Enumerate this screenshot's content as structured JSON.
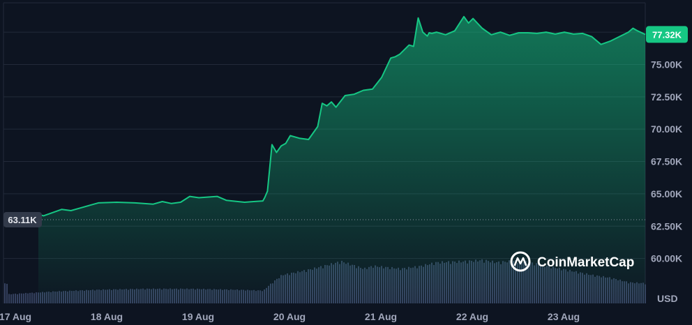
{
  "chart_data": {
    "type": "area",
    "x_ticks": [
      "17 Aug",
      "18 Aug",
      "19 Aug",
      "20 Aug",
      "21 Aug",
      "22 Aug",
      "23 Aug"
    ],
    "y_ticks": [
      "60.00K",
      "62.50K",
      "65.00K",
      "67.50K",
      "70.00K",
      "72.50K",
      "75.00K"
    ],
    "y_unit": "USD",
    "ylim": [
      57500,
      79500
    ],
    "x_range_days": [
      17.0,
      24.0
    ],
    "current_label": "77.32K",
    "current_value": 77320,
    "start_label": "63.11K",
    "start_value": 63110,
    "watermark": "CoinMarketCap",
    "line_color": "#16c784",
    "volume_color": "#35415f",
    "series": [
      {
        "x": [
          17.0,
          17.1,
          17.2,
          17.3,
          17.4,
          17.5,
          17.6,
          17.7,
          17.8,
          17.9,
          18.0,
          18.2,
          18.4,
          18.6,
          18.7,
          18.8,
          18.9,
          19.0,
          19.1,
          19.3,
          19.4,
          19.6,
          19.7,
          19.8,
          19.82,
          19.85,
          19.9,
          19.95,
          20.0,
          20.05,
          20.1,
          20.2,
          20.3,
          20.4,
          20.45,
          20.5,
          20.55,
          20.6,
          20.7,
          20.8,
          20.9,
          21.0,
          21.1,
          21.2,
          21.25,
          21.3,
          21.4,
          21.45,
          21.5,
          21.55,
          21.6,
          21.62,
          21.65,
          21.7,
          21.8,
          21.9,
          22.0,
          22.05,
          22.1,
          22.2,
          22.25,
          22.3,
          22.4,
          22.5,
          22.6,
          22.7,
          22.8,
          22.9,
          23.0,
          23.1,
          23.2,
          23.3,
          23.4,
          23.5,
          23.6,
          23.7,
          23.8,
          23.85,
          23.9,
          24.0
        ],
        "values": [
          63110,
          63200,
          63350,
          63500,
          63300,
          63550,
          63800,
          63700,
          63900,
          64100,
          64300,
          64350,
          64300,
          64200,
          64400,
          64250,
          64350,
          64800,
          64700,
          64800,
          64500,
          64350,
          64400,
          64450,
          64700,
          65200,
          68800,
          68200,
          68700,
          68900,
          69500,
          69300,
          69200,
          70200,
          72000,
          71800,
          72100,
          71700,
          72600,
          72700,
          73000,
          73100,
          74000,
          75500,
          75600,
          75800,
          76500,
          76400,
          78600,
          77500,
          77200,
          77450,
          77400,
          77500,
          77300,
          77600,
          78700,
          78200,
          78550,
          77800,
          77550,
          77300,
          77500,
          77250,
          77450,
          77450,
          77400,
          77500,
          77350,
          77500,
          77350,
          77400,
          77150,
          76550,
          76800,
          77150,
          77500,
          77800,
          77600,
          77320
        ]
      }
    ],
    "volume": {
      "x": [
        17.0,
        17.5,
        18.0,
        18.5,
        19.0,
        19.5,
        19.8,
        19.85,
        20.0,
        20.3,
        20.5,
        20.65,
        20.9,
        21.0,
        21.3,
        21.5,
        21.7,
        22.0,
        22.2,
        22.35,
        22.6,
        22.9,
        23.2,
        23.4,
        23.6,
        23.8,
        24.0
      ],
      "values": [
        2.0,
        2.6,
        3.0,
        3.2,
        3.2,
        3.0,
        2.8,
        3.8,
        6.2,
        7.4,
        8.4,
        9.2,
        7.6,
        8.2,
        7.6,
        8.1,
        9.0,
        9.2,
        9.5,
        9.0,
        9.4,
        8.2,
        7.0,
        6.2,
        5.6,
        4.6,
        4.4
      ]
    }
  }
}
